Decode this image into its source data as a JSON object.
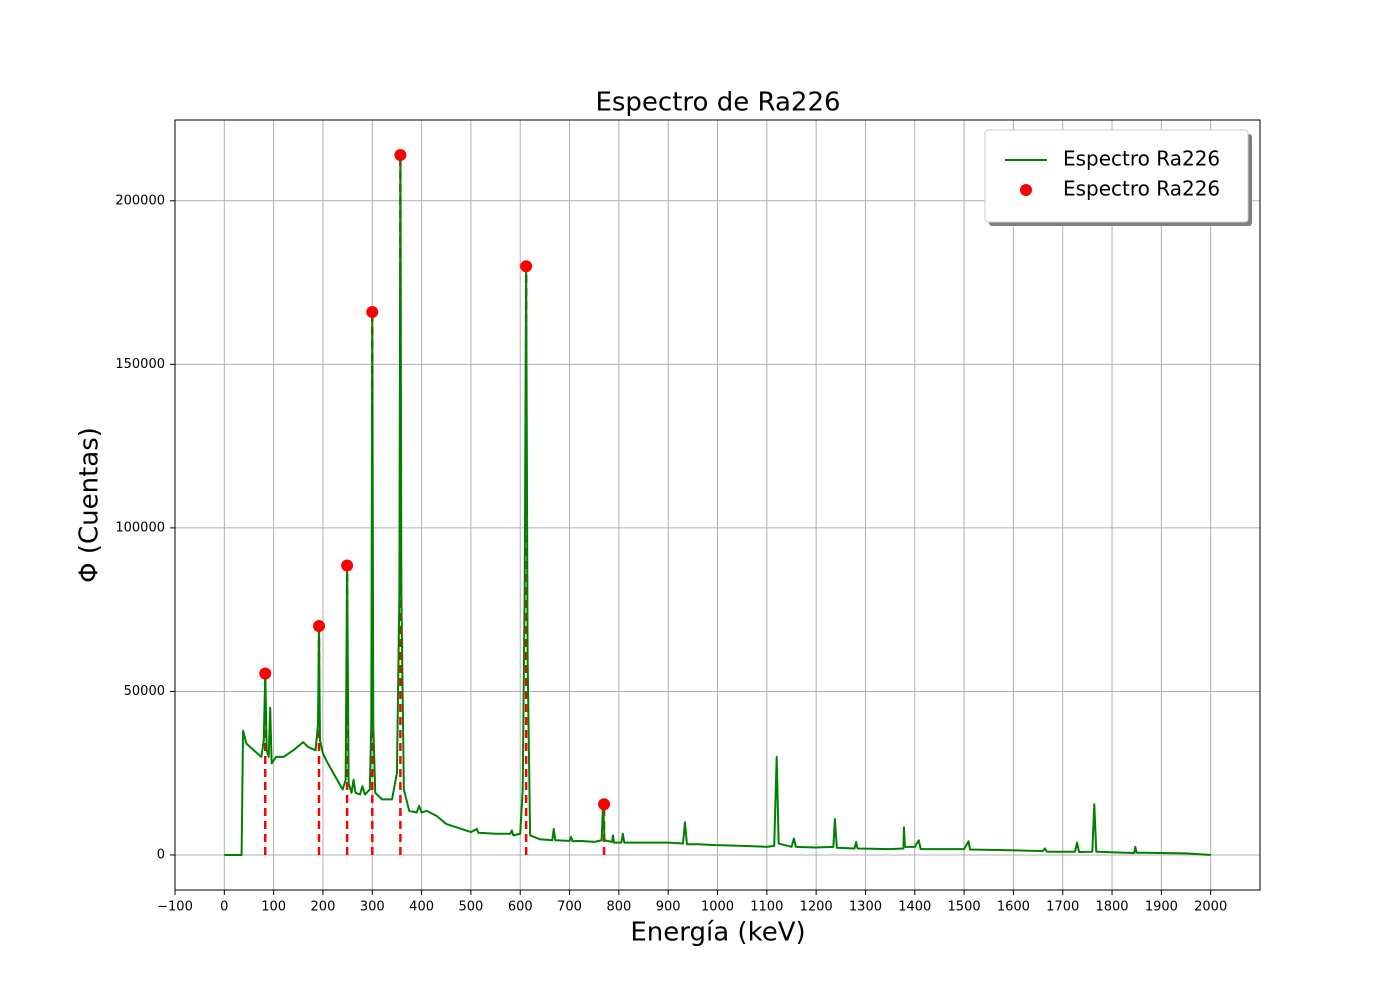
{
  "chart_data": {
    "type": "line",
    "title": "Espectro de Ra226",
    "xlabel": "Energía (keV)",
    "ylabel": "Φ (Cuentas)",
    "xlim": [
      -100,
      2100
    ],
    "ylim": [
      -10700,
      224700
    ],
    "xticks": [
      {
        "value": -100,
        "label": "−100"
      },
      0,
      100,
      200,
      300,
      400,
      500,
      600,
      700,
      800,
      900,
      1000,
      1100,
      1200,
      1300,
      1400,
      1500,
      1600,
      1700,
      1800,
      1900,
      2000
    ],
    "yticks": [
      0,
      50000,
      100000,
      150000,
      200000
    ],
    "grid": true,
    "legend": "upper right",
    "series": [
      {
        "name": "Espectro Ra226",
        "type": "line",
        "color": "#008000",
        "x": [
          0,
          35,
          38,
          45,
          60,
          75,
          80,
          83,
          86,
          90,
          93,
          96,
          105,
          120,
          140,
          160,
          170,
          185,
          190,
          192,
          194,
          200,
          210,
          225,
          240,
          246,
          249,
          252,
          258,
          262,
          266,
          275,
          280,
          285,
          295,
          298,
          300,
          302,
          306,
          320,
          340,
          350,
          355,
          357,
          359,
          364,
          375,
          390,
          395,
          400,
          410,
          430,
          450,
          460,
          480,
          500,
          512,
          515,
          550,
          580,
          583,
          586,
          600,
          605,
          609,
          612,
          615,
          620,
          640,
          665,
          668,
          671,
          700,
          703,
          706,
          720,
          750,
          765,
          768,
          771,
          786,
          788,
          790,
          805,
          808,
          811,
          840,
          900,
          930,
          934,
          938,
          960,
          1000,
          1050,
          1100,
          1115,
          1120,
          1124,
          1150,
          1155,
          1159,
          1200,
          1235,
          1238,
          1242,
          1278,
          1281,
          1284,
          1350,
          1377,
          1378,
          1380,
          1400,
          1408,
          1412,
          1500,
          1509,
          1512,
          1580,
          1660,
          1664,
          1668,
          1725,
          1729,
          1733,
          1760,
          1764,
          1768,
          1845,
          1847,
          1850,
          1950,
          2000
        ],
        "values": [
          0,
          0,
          38000,
          34000,
          32000,
          30000,
          35000,
          55500,
          32000,
          30000,
          45000,
          28000,
          30000,
          30000,
          32000,
          34500,
          33000,
          32000,
          40000,
          70000,
          35000,
          31000,
          28000,
          24000,
          20000,
          23000,
          88500,
          22000,
          19000,
          23000,
          19000,
          18500,
          21000,
          18500,
          20000,
          40000,
          166000,
          40000,
          19000,
          17000,
          17000,
          25000,
          80000,
          214000,
          80000,
          20000,
          13500,
          13000,
          15000,
          13000,
          13500,
          12000,
          9500,
          9000,
          8000,
          7000,
          8000,
          6800,
          6500,
          6500,
          7500,
          6000,
          6500,
          20000,
          80000,
          180000,
          60000,
          6000,
          4800,
          4500,
          8000,
          4500,
          4300,
          5500,
          4200,
          4300,
          4000,
          4500,
          15500,
          4500,
          4000,
          6000,
          3800,
          3800,
          6500,
          3800,
          3800,
          3800,
          3500,
          10000,
          3300,
          3300,
          3000,
          2800,
          2500,
          2800,
          30000,
          3500,
          2500,
          5000,
          2500,
          2300,
          2500,
          11000,
          2200,
          2000,
          4000,
          2000,
          1800,
          2000,
          8500,
          2500,
          2500,
          4500,
          1800,
          1800,
          4200,
          1700,
          1500,
          1200,
          2000,
          1000,
          1000,
          3800,
          900,
          1000,
          15500,
          1000,
          600,
          2500,
          700,
          500,
          0
        ]
      },
      {
        "name": "Espectro Ra226",
        "type": "scatter",
        "color": "#ff0000",
        "stems": true,
        "x": [
          83,
          192,
          249,
          300,
          357,
          612,
          770
        ],
        "values": [
          55500,
          70000,
          88500,
          166000,
          214000,
          180000,
          15500
        ]
      }
    ]
  }
}
